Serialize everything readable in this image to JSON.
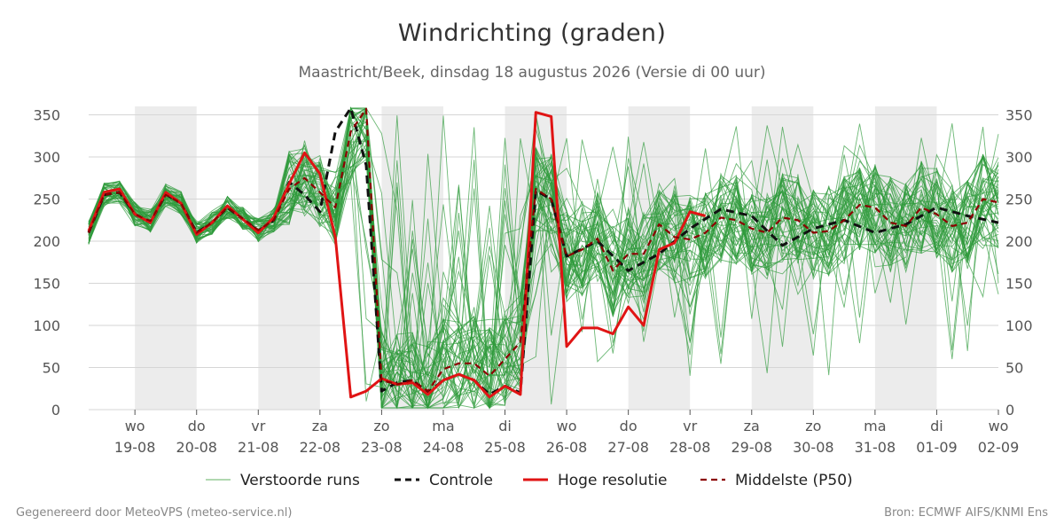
{
  "title": "Windrichting (graden)",
  "subtitle": "Maastricht/Beek, dinsdag 18 augustus 2026 (Versie di 00 uur)",
  "footer_left": "Gegenereerd door MeteoVPS (meteo-service.nl)",
  "footer_right": "Bron: ECMWF AIFS/KNMI Ens",
  "chart_data": {
    "type": "line",
    "title": "Windrichting (graden)",
    "ylabel": "",
    "ylim": [
      0,
      360
    ],
    "yticks": [
      0,
      50,
      100,
      150,
      200,
      250,
      300,
      350
    ],
    "xlim": [
      -0.75,
      14.0
    ],
    "x_unit": "days after 19-08 00:00",
    "xticks": [
      {
        "day": "wo",
        "date": "19-08"
      },
      {
        "day": "do",
        "date": "20-08"
      },
      {
        "day": "vr",
        "date": "21-08"
      },
      {
        "day": "za",
        "date": "22-08"
      },
      {
        "day": "zo",
        "date": "23-08"
      },
      {
        "day": "ma",
        "date": "24-08"
      },
      {
        "day": "di",
        "date": "25-08"
      },
      {
        "day": "wo",
        "date": "26-08"
      },
      {
        "day": "do",
        "date": "27-08"
      },
      {
        "day": "vr",
        "date": "28-08"
      },
      {
        "day": "za",
        "date": "29-08"
      },
      {
        "day": "zo",
        "date": "30-08"
      },
      {
        "day": "ma",
        "date": "31-08"
      },
      {
        "day": "di",
        "date": "01-09"
      },
      {
        "day": "wo",
        "date": "02-09"
      }
    ],
    "weekend_bands": [
      [
        0,
        1
      ],
      [
        2,
        3
      ],
      [
        4,
        5
      ],
      [
        6,
        7
      ],
      [
        8,
        9
      ],
      [
        10,
        11
      ],
      [
        12,
        13
      ]
    ],
    "grid": "horizontal",
    "legend_position": "bottom",
    "legend": [
      {
        "label": "Verstoorde runs",
        "color": "#3a9e3a",
        "style": "thin"
      },
      {
        "label": "Controle",
        "color": "#111111",
        "style": "dashed"
      },
      {
        "label": "Hoge resolutie",
        "color": "#e01414",
        "style": "solid"
      },
      {
        "label": "Middelste (P50)",
        "color": "#8b0000",
        "style": "dashed"
      }
    ],
    "series": [
      {
        "name": "Controle",
        "color": "#111111",
        "x": [
          -0.75,
          -0.5,
          -0.25,
          0,
          0.25,
          0.5,
          0.75,
          1,
          1.25,
          1.5,
          1.75,
          2,
          2.25,
          2.5,
          2.75,
          3,
          3.25,
          3.5,
          3.75,
          4,
          4.25,
          4.5,
          4.75,
          5,
          5.25,
          5.5,
          5.75,
          6,
          6.25,
          6.5,
          6.75,
          7,
          7.5,
          8,
          8.5,
          9,
          9.5,
          10,
          10.5,
          11,
          11.5,
          12,
          12.5,
          13,
          13.5,
          14
        ],
        "y": [
          210,
          255,
          258,
          232,
          222,
          256,
          245,
          210,
          222,
          240,
          226,
          212,
          225,
          270,
          255,
          235,
          330,
          358,
          290,
          22,
          32,
          35,
          20,
          35,
          42,
          35,
          18,
          28,
          20,
          260,
          250,
          182,
          200,
          165,
          185,
          215,
          238,
          230,
          195,
          215,
          225,
          210,
          220,
          240,
          230,
          222
        ]
      },
      {
        "name": "Hoge resolutie",
        "color": "#e01414",
        "x": [
          -0.75,
          -0.5,
          -0.25,
          0,
          0.25,
          0.5,
          0.75,
          1,
          1.25,
          1.5,
          1.75,
          2,
          2.25,
          2.5,
          2.75,
          3,
          3.25,
          3.5,
          3.75,
          4,
          4.25,
          4.5,
          4.75,
          5,
          5.25,
          5.5,
          5.75,
          6,
          6.25,
          6.5,
          6.75,
          7,
          7.25,
          7.5,
          7.75,
          8,
          8.25,
          8.5,
          8.75,
          9,
          9.25
        ],
        "y": [
          212,
          258,
          262,
          232,
          222,
          258,
          245,
          208,
          222,
          242,
          226,
          210,
          228,
          268,
          305,
          280,
          205,
          15,
          22,
          37,
          30,
          32,
          18,
          35,
          42,
          35,
          15,
          28,
          18,
          353,
          348,
          75,
          97,
          97,
          90,
          122,
          100,
          190,
          198,
          235,
          230
        ]
      },
      {
        "name": "Middelste (P50)",
        "color": "#8b0000",
        "x": [
          -0.75,
          -0.5,
          -0.25,
          0,
          0.25,
          0.5,
          0.75,
          1,
          1.25,
          1.5,
          1.75,
          2,
          2.25,
          2.5,
          2.75,
          3,
          3.25,
          3.5,
          3.75,
          4,
          4.25,
          4.5,
          4.75,
          5,
          5.25,
          5.5,
          5.75,
          6,
          6.25,
          6.5,
          6.75,
          7,
          7.25,
          7.5,
          7.75,
          8,
          8.25,
          8.5,
          8.75,
          9,
          9.25,
          9.5,
          9.75,
          10,
          10.25,
          10.5,
          10.75,
          11,
          11.25,
          11.5,
          11.75,
          12,
          12.25,
          12.5,
          12.75,
          13,
          13.25,
          13.5,
          13.75,
          14
        ],
        "y": [
          210,
          255,
          258,
          232,
          224,
          255,
          245,
          210,
          222,
          240,
          227,
          213,
          225,
          262,
          275,
          258,
          240,
          330,
          357,
          35,
          30,
          35,
          22,
          48,
          55,
          55,
          40,
          60,
          80,
          262,
          250,
          182,
          190,
          203,
          165,
          185,
          185,
          220,
          205,
          202,
          210,
          228,
          225,
          215,
          210,
          228,
          225,
          210,
          212,
          225,
          243,
          240,
          222,
          218,
          240,
          232,
          218,
          222,
          250,
          246
        ]
      }
    ]
  }
}
